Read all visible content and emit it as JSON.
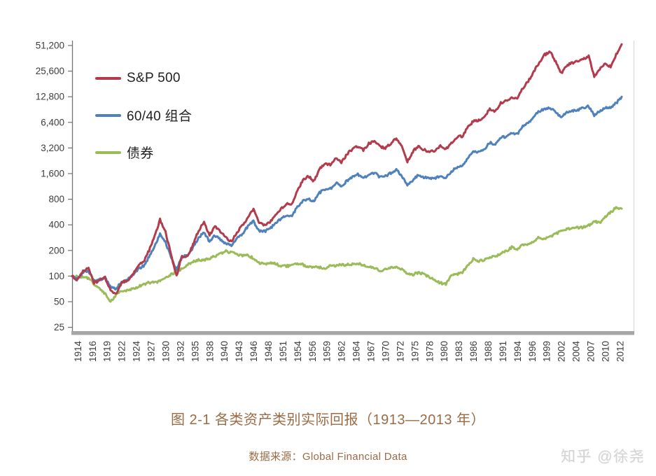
{
  "chart_data": {
    "type": "line",
    "title": "",
    "grid": false,
    "legend_position": "top-left-inside",
    "x_axis": {
      "label": "",
      "range_years": [
        1913,
        2013
      ],
      "first_tick_year": 1914,
      "tick_step_years": 2.6667,
      "tick_labels": [
        "1914",
        "1916",
        "1919",
        "1922",
        "1924",
        "1927",
        "1930",
        "1932",
        "1935",
        "1938",
        "1940",
        "1943",
        "1946",
        "1948",
        "1951",
        "1954",
        "1956",
        "1959",
        "1962",
        "1964",
        "1967",
        "1970",
        "1972",
        "1975",
        "1978",
        "1980",
        "1983",
        "1986",
        "1988",
        "1991",
        "1994",
        "1996",
        "1999",
        "2002",
        "2004",
        "2007",
        "2010",
        "2012"
      ]
    },
    "y_axis": {
      "scale": "log2",
      "min": 25,
      "max": 51200,
      "ticks": [
        {
          "label": "51,200",
          "value": 51200
        },
        {
          "label": "25,600",
          "value": 25600
        },
        {
          "label": "12,800",
          "value": 12800
        },
        {
          "label": "6,400",
          "value": 6400
        },
        {
          "label": "3,200",
          "value": 3200
        },
        {
          "label": "1,600",
          "value": 1600
        },
        {
          "label": "800",
          "value": 800
        },
        {
          "label": "400",
          "value": 400
        },
        {
          "label": "200",
          "value": 200
        },
        {
          "label": "100",
          "value": 100
        },
        {
          "label": "50",
          "value": 50
        },
        {
          "label": "25",
          "value": 25
        }
      ]
    },
    "x_start_year": 1913,
    "series": [
      {
        "name": "S&P 500",
        "color": "#b23b4c",
        "values": [
          100,
          90,
          116,
          122,
          84,
          88,
          96,
          68,
          62,
          84,
          87,
          104,
          132,
          148,
          200,
          290,
          460,
          330,
          180,
          100,
          175,
          168,
          235,
          340,
          430,
          300,
          380,
          330,
          280,
          255,
          330,
          390,
          500,
          620,
          420,
          400,
          430,
          530,
          620,
          700,
          690,
          1000,
          1350,
          1500,
          1300,
          1800,
          2100,
          2050,
          2500,
          2150,
          2700,
          3100,
          3400,
          3000,
          3600,
          3900,
          3300,
          3200,
          3600,
          4200,
          3300,
          2200,
          2900,
          3400,
          3050,
          2900,
          3000,
          3400,
          3100,
          3600,
          4300,
          4400,
          5600,
          6600,
          6800,
          7300,
          9300,
          8500,
          10800,
          11400,
          12300,
          12100,
          16200,
          19500,
          25500,
          32000,
          40000,
          43000,
          33000,
          24000,
          30000,
          32000,
          33000,
          36000,
          38000,
          22000,
          27000,
          31000,
          29000,
          40000,
          53000
        ]
      },
      {
        "name": "60/40 组合",
        "color": "#4f81bd",
        "values": [
          100,
          93,
          110,
          114,
          88,
          91,
          96,
          74,
          70,
          86,
          89,
          102,
          120,
          132,
          168,
          225,
          310,
          250,
          165,
          120,
          170,
          172,
          215,
          280,
          330,
          255,
          300,
          270,
          240,
          225,
          275,
          315,
          385,
          440,
          340,
          335,
          360,
          420,
          470,
          520,
          515,
          650,
          760,
          800,
          760,
          950,
          1050,
          1060,
          1250,
          1130,
          1320,
          1470,
          1560,
          1430,
          1560,
          1650,
          1450,
          1500,
          1620,
          1780,
          1500,
          1150,
          1350,
          1550,
          1450,
          1400,
          1420,
          1480,
          1420,
          1700,
          1900,
          1980,
          2450,
          2850,
          2900,
          3100,
          3700,
          3500,
          4200,
          4400,
          4800,
          4650,
          5700,
          6300,
          7500,
          8600,
          9300,
          9500,
          8400,
          7300,
          8300,
          8700,
          8900,
          9400,
          9900,
          7800,
          8700,
          9600,
          9400,
          10800,
          12800
        ]
      },
      {
        "name": "债券",
        "color": "#9bbb59",
        "values": [
          100,
          99,
          97,
          94,
          81,
          71,
          62,
          50,
          60,
          67,
          67,
          71,
          75,
          80,
          84,
          84,
          87,
          97,
          104,
          112,
          122,
          136,
          148,
          155,
          152,
          162,
          172,
          182,
          196,
          188,
          180,
          176,
          174,
          162,
          143,
          138,
          144,
          140,
          131,
          131,
          134,
          140,
          136,
          129,
          128,
          126,
          123,
          131,
          132,
          136,
          136,
          138,
          140,
          134,
          128,
          124,
          115,
          119,
          126,
          127,
          119,
          106,
          104,
          110,
          106,
          97,
          88,
          83,
          81,
          101,
          105,
          111,
          132,
          158,
          151,
          156,
          166,
          169,
          186,
          196,
          218,
          204,
          235,
          238,
          258,
          288,
          272,
          295,
          310,
          345,
          355,
          365,
          370,
          372,
          392,
          440,
          420,
          500,
          560,
          640,
          620
        ]
      }
    ]
  },
  "caption": "图 2-1 各类资产类别实际回报（1913—2013 年）",
  "source": "数据来源：Global Financial Data",
  "watermark": "知乎 @徐尧",
  "colors": {
    "axis": "#737373",
    "axis_text": "#3d3d3d",
    "baseline_bar": "#a6a6a6",
    "right_border": "#d6d6d6",
    "caption_text": "#9c6b46",
    "watermark_text": "#d4d4d4"
  }
}
